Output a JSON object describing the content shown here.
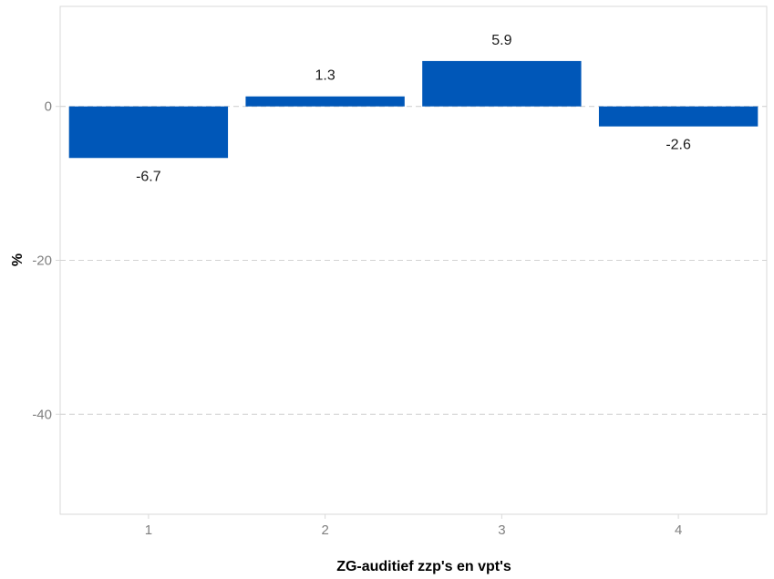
{
  "chart_data": {
    "type": "bar",
    "title": "",
    "xlabel": "ZG-auditief zzp's en vpt's",
    "ylabel": "%",
    "categories": [
      "1",
      "2",
      "3",
      "4"
    ],
    "values": [
      -6.7,
      1.3,
      5.9,
      -2.6
    ],
    "value_labels": [
      "-6.7",
      "1.3",
      "5.9",
      "-2.6"
    ],
    "ylim": [
      -53,
      13
    ],
    "yticks": [
      0,
      -20,
      -40
    ],
    "ytick_labels": [
      "0",
      "-20",
      "-40"
    ],
    "grid": "horizontal dashed",
    "legend": "none",
    "bar_color": "#0057b8",
    "grid_color": "#d2d2d2",
    "panel_border_color": "#d9d9d9"
  }
}
